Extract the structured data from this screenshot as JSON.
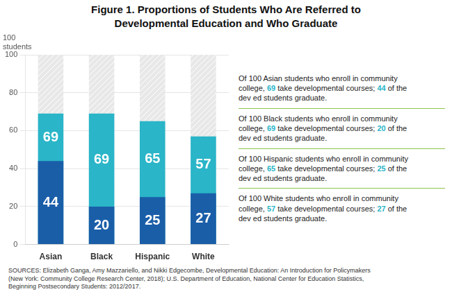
{
  "chart_data": {
    "type": "bar",
    "title": "Figure 1. Proportions of Students Who Are Referred to\nDevelopmental Education and Who Graduate",
    "categories": [
      "Asian",
      "Black",
      "Hispanic",
      "White"
    ],
    "series": [
      {
        "color": "#e8e8e8",
        "values": [
          100,
          100,
          100,
          100
        ],
        "data_labels": false
      },
      {
        "color": "#2ab5c8",
        "values": [
          69,
          69,
          65,
          57
        ],
        "data_labels": true
      },
      {
        "color": "#1a5ea8",
        "values": [
          44,
          20,
          25,
          27
        ],
        "data_labels": true
      }
    ],
    "stacked": false,
    "ylim": [
      0,
      100
    ],
    "yticks": [
      0,
      20,
      40,
      60,
      80,
      100
    ],
    "ylabel": "100\nstudents",
    "grid": true,
    "annotations": [
      [
        "Of 100 Asian students who enroll in community\ncollege, ",
        "69",
        " take developmental courses; ",
        "44",
        " of the\ndev ed students graduate."
      ],
      [
        "Of 100 Black students who enroll in community\ncollege, ",
        "69",
        " take developmental courses; ",
        "20",
        " of the\ndev ed students graduate."
      ],
      [
        "Of 100 Hispanic students who enroll in community\ncollege, ",
        "65",
        " take developmental courses; ",
        "25",
        " of the\ndev ed students graduate."
      ],
      [
        "Of 100 White students who enroll in community\ncollege, ",
        "57",
        " take developmental courses; ",
        "27",
        " of the\ndev ed students graduate."
      ]
    ],
    "source": "SOURCES: Elizabeth Ganga, Amy Mazzariello, and Nikki Edgecombe, Developmental Education: An Introduction for Policymakers\n(New York: Community College Research Center, 2018); U.S. Department of Education, National Center for Education Statistics,\nBeginning Postsecondary Students: 2012/2017."
  }
}
